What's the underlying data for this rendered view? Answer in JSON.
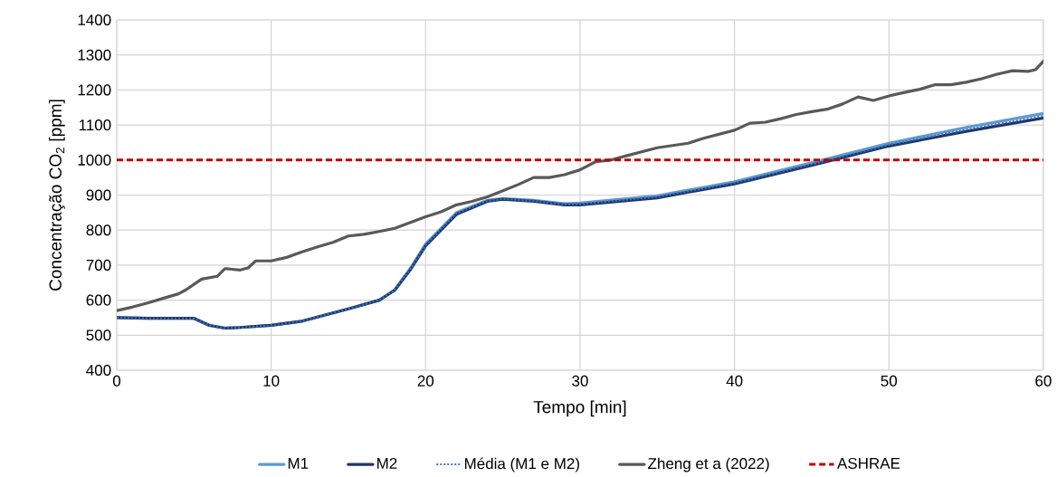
{
  "chart_data": {
    "type": "line",
    "xlabel": "Tempo [min]",
    "ylabel": "Concentração CO$_{2}$ [ppm]",
    "xlim": [
      0,
      60
    ],
    "xticks": [
      0,
      10,
      20,
      30,
      40,
      50,
      60
    ],
    "ylim": [
      400,
      1400
    ],
    "yticks": [
      400,
      500,
      600,
      700,
      800,
      900,
      1000,
      1100,
      1200,
      1300,
      1400
    ],
    "grid": true,
    "legend": "bottom",
    "marker": "none",
    "x": [
      0,
      2,
      4,
      5,
      6,
      7,
      8,
      10,
      12,
      15,
      17,
      18,
      19,
      20,
      22,
      24,
      25,
      27,
      29,
      30,
      35,
      40,
      45,
      50,
      55,
      60
    ],
    "series": [
      {
        "name": "M1",
        "color": "#5b9bd5",
        "line_style": "solid",
        "values": [
          550,
          548,
          548,
          548,
          528,
          520,
          522,
          528,
          540,
          575,
          600,
          630,
          690,
          760,
          850,
          885,
          890,
          885,
          875,
          877,
          898,
          938,
          992,
          1048,
          1093,
          1133
        ]
      },
      {
        "name": "M2",
        "color": "#203864",
        "line_style": "solid",
        "values": [
          550,
          548,
          548,
          548,
          528,
          520,
          522,
          528,
          540,
          575,
          600,
          628,
          686,
          755,
          845,
          882,
          888,
          882,
          872,
          872,
          892,
          932,
          985,
          1040,
          1082,
          1120
        ]
      },
      {
        "name": "Média (M1 e M2)",
        "color": "#4472c4",
        "line_style": "dotted",
        "values": [
          550,
          548,
          548,
          548,
          528,
          520,
          522,
          528,
          540,
          575,
          600,
          629,
          688,
          757,
          848,
          883,
          889,
          883,
          873,
          874,
          895,
          935,
          988,
          1044,
          1087,
          1126
        ]
      },
      {
        "name": "Zheng et a (2022)",
        "color": "#595959",
        "line_style": "solid",
        "x": [
          0,
          1,
          2,
          3,
          4,
          4.5,
          5,
          5.5,
          6.5,
          7,
          8,
          8.5,
          9,
          10,
          11,
          12,
          13,
          14,
          15,
          16,
          17,
          18,
          20,
          21,
          22,
          23,
          24,
          25,
          26,
          27,
          28,
          29,
          30,
          31,
          32,
          33,
          35,
          37,
          38,
          40,
          41,
          42,
          43,
          44,
          45,
          46,
          47,
          48,
          49,
          50,
          51,
          52,
          53,
          54,
          55,
          56,
          57,
          58,
          59,
          59.5,
          60
        ],
        "values": [
          570,
          580,
          592,
          605,
          618,
          630,
          645,
          660,
          668,
          690,
          686,
          692,
          712,
          712,
          722,
          738,
          752,
          765,
          783,
          788,
          796,
          805,
          838,
          852,
          872,
          882,
          895,
          912,
          930,
          950,
          950,
          958,
          972,
          995,
          1000,
          1012,
          1035,
          1048,
          1062,
          1085,
          1105,
          1108,
          1118,
          1130,
          1138,
          1145,
          1160,
          1180,
          1170,
          1183,
          1193,
          1202,
          1215,
          1215,
          1222,
          1232,
          1245,
          1255,
          1253,
          1258,
          1282
        ]
      },
      {
        "name": "ASHRAE",
        "color": "#c00000",
        "line_style": "dashed",
        "x": [
          0,
          60
        ],
        "values": [
          1000,
          1000
        ]
      }
    ]
  }
}
